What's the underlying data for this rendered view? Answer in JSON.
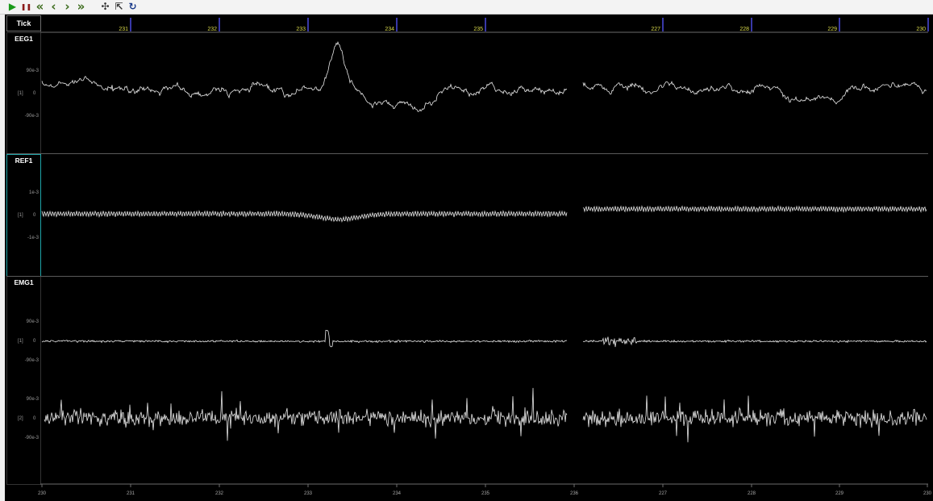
{
  "toolbar": {
    "buttons": [
      {
        "name": "play-button",
        "icon": "play-icon",
        "glyph": "▶",
        "color": "#1a9a1a"
      },
      {
        "name": "pause-button",
        "icon": "pause-icon",
        "glyph": "❚❚",
        "color": "#8b1a1a"
      },
      {
        "name": "rewind-fast-button",
        "icon": "double-chevron-left-icon",
        "glyph": "«",
        "color": "#3a6a1a"
      },
      {
        "name": "step-back-button",
        "icon": "chevron-left-icon",
        "glyph": "‹",
        "color": "#3a6a1a"
      },
      {
        "name": "step-forward-button",
        "icon": "chevron-right-icon",
        "glyph": "›",
        "color": "#3a6a1a"
      },
      {
        "name": "forward-fast-button",
        "icon": "double-chevron-right-icon",
        "glyph": "»",
        "color": "#3a6a1a"
      },
      {
        "name": "fit-button",
        "icon": "compress-icon",
        "glyph": "✣",
        "color": "#333333"
      },
      {
        "name": "export-button",
        "icon": "export-icon",
        "glyph": "⇱",
        "color": "#333333"
      },
      {
        "name": "refresh-button",
        "icon": "refresh-icon",
        "glyph": "↻",
        "color": "#1a3a8a"
      }
    ]
  },
  "tick_header": {
    "label": "Tick"
  },
  "tick_ruler": {
    "labels": [
      "231",
      "232",
      "233",
      "234",
      "235",
      "227",
      "228",
      "229",
      "230"
    ],
    "label_color": "#d8d84a",
    "marker_color": "#4a4ae0"
  },
  "bottom_axis": {
    "labels": [
      "230",
      "231",
      "232",
      "233",
      "234",
      "235",
      "236",
      "227",
      "228",
      "229",
      "230"
    ]
  },
  "channels": [
    {
      "name": "EEG1",
      "upper": "90e-3",
      "mid_tag": "[1]",
      "mid": "0",
      "lower": "-90e-3",
      "selected": false
    },
    {
      "name": "REF1",
      "upper": "1e-3",
      "mid_tag": "[1]",
      "mid": "0",
      "lower": "-1e-3",
      "selected": true
    },
    {
      "name": "EMG1",
      "upper": "90e-3",
      "mid_tag": "[1]",
      "mid": "0",
      "lower": "-90e-3",
      "selected": false,
      "second": {
        "upper": "90e-3",
        "mid_tag": "[2]",
        "mid": "0",
        "lower": "-90e-3"
      }
    }
  ],
  "colors": {
    "background": "#000000",
    "trace": "#e8e8e8",
    "selected_border": "#1fa4a8"
  }
}
